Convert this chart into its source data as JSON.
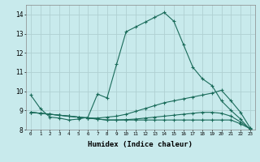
{
  "title": "",
  "xlabel": "Humidex (Indice chaleur)",
  "ylabel": "",
  "bg_color": "#c8eaec",
  "grid_color": "#b0d0d2",
  "line_color": "#1a6b5a",
  "xlim": [
    -0.5,
    23.5
  ],
  "ylim": [
    8.0,
    14.5
  ],
  "xticks": [
    0,
    1,
    2,
    3,
    4,
    5,
    6,
    7,
    8,
    9,
    10,
    11,
    12,
    13,
    14,
    15,
    16,
    17,
    18,
    19,
    20,
    21,
    22,
    23
  ],
  "yticks": [
    8,
    9,
    10,
    11,
    12,
    13,
    14
  ],
  "series": [
    {
      "x": [
        0,
        1,
        2,
        3,
        4,
        5,
        6,
        7,
        8,
        9,
        10,
        11,
        12,
        13,
        14,
        15,
        16,
        17,
        18,
        19,
        20,
        21,
        22,
        23
      ],
      "y": [
        9.8,
        9.1,
        8.65,
        8.6,
        8.5,
        8.55,
        8.65,
        9.85,
        9.65,
        11.4,
        13.1,
        13.35,
        13.6,
        13.85,
        14.1,
        13.65,
        12.45,
        11.25,
        10.65,
        10.3,
        9.5,
        9.0,
        8.55,
        8.0
      ]
    },
    {
      "x": [
        0,
        1,
        2,
        3,
        4,
        5,
        6,
        7,
        8,
        9,
        10,
        11,
        12,
        13,
        14,
        15,
        16,
        17,
        18,
        19,
        20,
        21,
        22,
        23
      ],
      "y": [
        8.9,
        8.85,
        8.8,
        8.75,
        8.7,
        8.65,
        8.6,
        8.6,
        8.65,
        8.7,
        8.8,
        8.95,
        9.1,
        9.25,
        9.4,
        9.5,
        9.6,
        9.7,
        9.8,
        9.9,
        10.05,
        9.5,
        8.9,
        8.1
      ]
    },
    {
      "x": [
        0,
        1,
        2,
        3,
        4,
        5,
        6,
        7,
        8,
        9,
        10,
        11,
        12,
        13,
        14,
        15,
        16,
        17,
        18,
        19,
        20,
        21,
        22,
        23
      ],
      "y": [
        8.9,
        8.85,
        8.8,
        8.75,
        8.7,
        8.65,
        8.6,
        8.55,
        8.5,
        8.5,
        8.52,
        8.55,
        8.6,
        8.65,
        8.7,
        8.75,
        8.8,
        8.85,
        8.9,
        8.9,
        8.85,
        8.7,
        8.4,
        8.05
      ]
    },
    {
      "x": [
        0,
        1,
        2,
        3,
        4,
        5,
        6,
        7,
        8,
        9,
        10,
        11,
        12,
        13,
        14,
        15,
        16,
        17,
        18,
        19,
        20,
        21,
        22,
        23
      ],
      "y": [
        8.9,
        8.85,
        8.8,
        8.75,
        8.7,
        8.65,
        8.6,
        8.55,
        8.5,
        8.5,
        8.5,
        8.5,
        8.5,
        8.5,
        8.5,
        8.5,
        8.5,
        8.5,
        8.5,
        8.5,
        8.5,
        8.5,
        8.3,
        8.05
      ]
    }
  ]
}
